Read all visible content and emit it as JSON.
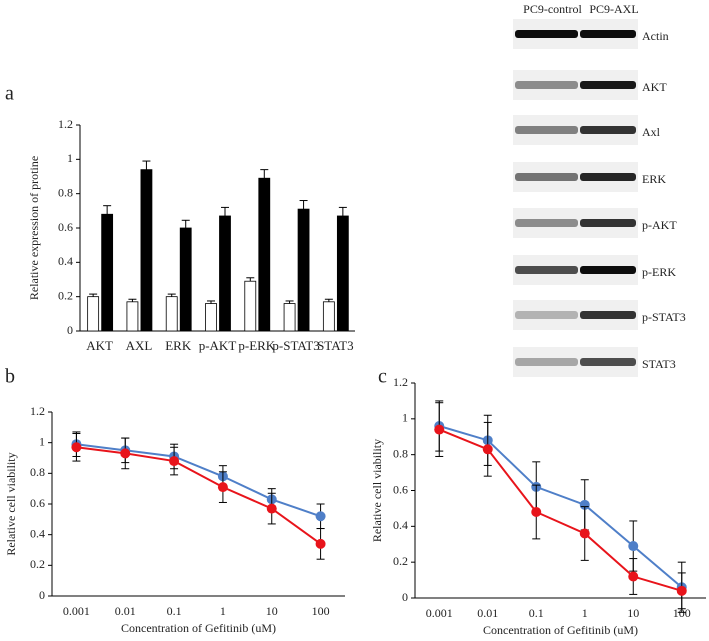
{
  "chart_data": [
    {
      "type": "bar",
      "panel": "a",
      "ylabel": "Relative expression of protine",
      "categories": [
        "AKT",
        "AXL",
        "ERK",
        "p-AKT",
        "p-ERK",
        "p-STAT3",
        "STAT3"
      ],
      "series": [
        {
          "color": "#ffffff",
          "values": [
            0.2,
            0.17,
            0.2,
            0.16,
            0.29,
            0.16,
            0.17
          ],
          "errors": [
            0.015,
            0.015,
            0.015,
            0.015,
            0.02,
            0.015,
            0.015
          ]
        },
        {
          "color": "#000000",
          "values": [
            0.68,
            0.94,
            0.6,
            0.67,
            0.89,
            0.71,
            0.67
          ],
          "errors": [
            0.05,
            0.05,
            0.045,
            0.05,
            0.05,
            0.05,
            0.05
          ]
        }
      ],
      "ylim": [
        0,
        1.2
      ],
      "yticks": [
        0,
        0.2,
        0.4,
        0.6,
        0.8,
        1,
        1.2
      ]
    },
    {
      "type": "line",
      "panel": "b",
      "ylabel": "Relative cell viability",
      "xlabel": "Concentration of Gefitinib (uM)",
      "categories": [
        "0.001",
        "0.01",
        "0.1",
        "1",
        "10",
        "100"
      ],
      "series": [
        {
          "color": "#4f7fc8",
          "values": [
            0.99,
            0.95,
            0.91,
            0.78,
            0.63,
            0.52
          ],
          "errors": [
            0.08,
            0.08,
            0.08,
            0.07,
            0.07,
            0.08
          ]
        },
        {
          "color": "#e8141b",
          "values": [
            0.97,
            0.93,
            0.88,
            0.71,
            0.57,
            0.34
          ],
          "errors": [
            0.09,
            0.1,
            0.09,
            0.1,
            0.1,
            0.1
          ]
        }
      ],
      "ylim": [
        0,
        1.2
      ],
      "yticks": [
        0,
        0.2,
        0.4,
        0.6,
        0.8,
        1,
        1.2
      ]
    },
    {
      "type": "line",
      "panel": "c",
      "ylabel": "Relative cell viability",
      "xlabel": "Concentration of Gefitinib (uM)",
      "categories": [
        "0.001",
        "0.01",
        "0.1",
        "1",
        "10",
        "100"
      ],
      "series": [
        {
          "color": "#4f7fc8",
          "values": [
            0.96,
            0.88,
            0.62,
            0.52,
            0.29,
            0.06
          ],
          "errors": [
            0.14,
            0.14,
            0.14,
            0.14,
            0.14,
            0.14
          ]
        },
        {
          "color": "#e8141b",
          "values": [
            0.94,
            0.83,
            0.48,
            0.36,
            0.12,
            0.04
          ],
          "errors": [
            0.15,
            0.15,
            0.15,
            0.15,
            0.1,
            0.1
          ]
        }
      ],
      "ylim": [
        0,
        1.2
      ],
      "yticks": [
        0,
        0.2,
        0.4,
        0.6,
        0.8,
        1,
        1.2
      ]
    }
  ],
  "blot": {
    "columns": [
      "PC9-control",
      "PC9-AXL"
    ],
    "rows": [
      "Actin",
      "AKT",
      "Axl",
      "ERK",
      "p-AKT",
      "p-ERK",
      "p-STAT3",
      "STAT3"
    ]
  }
}
